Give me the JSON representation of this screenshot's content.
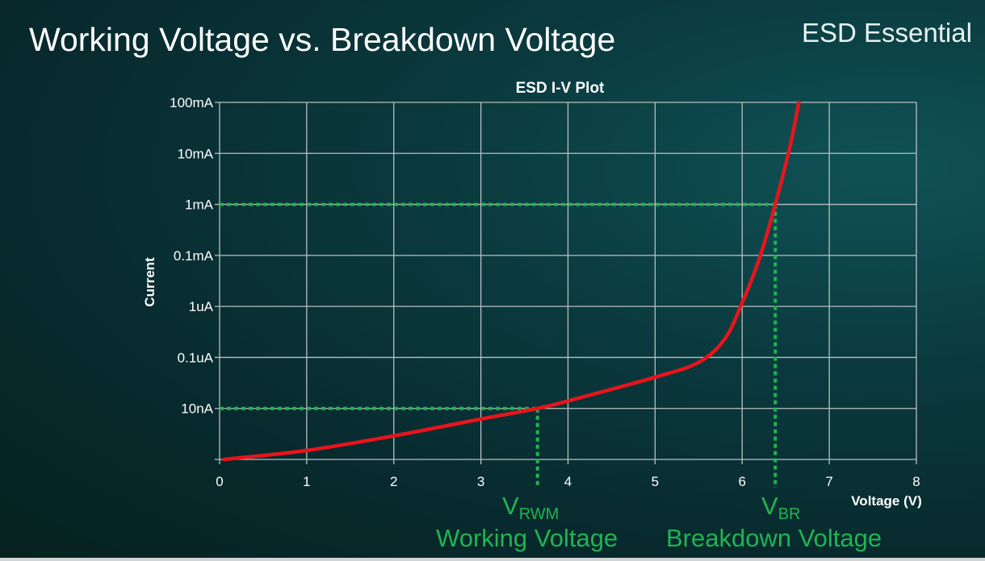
{
  "slide": {
    "title": "Working Voltage vs. Breakdown Voltage",
    "brand": "ESD Essential"
  },
  "annotations": {
    "vrwm_symbol": "V",
    "vrwm_sub": "RWM",
    "vrwm_label": "Working Voltage",
    "vbr_symbol": "V",
    "vbr_sub": "BR",
    "vbr_label": "Breakdown Voltage"
  },
  "chart_data": {
    "type": "line",
    "title": "ESD I-V Plot",
    "xlabel": "Voltage (V)",
    "ylabel": "Current",
    "xlim": [
      0,
      8
    ],
    "x_ticks": [
      0,
      1,
      2,
      3,
      4,
      5,
      6,
      7,
      8
    ],
    "y_scale": "log",
    "y_ticks": [
      {
        "label": "10nA",
        "value": 1e-08
      },
      {
        "label": "0.1uA",
        "value": 1e-07
      },
      {
        "label": "1uA",
        "value": 1e-06
      },
      {
        "label": "0.1mA",
        "value": 0.0001
      },
      {
        "label": "1mA",
        "value": 0.001
      },
      {
        "label": "10mA",
        "value": 0.01
      },
      {
        "label": "100mA",
        "value": 0.1
      }
    ],
    "ylim": [
      1e-09,
      0.1
    ],
    "grid": true,
    "series": [
      {
        "color": "#e8141c",
        "x": [
          0.05,
          1,
          2,
          3,
          3.65,
          4,
          5,
          5.5,
          5.8,
          6,
          6.2,
          6.38,
          6.55,
          6.65
        ],
        "y": [
          1e-09,
          1.5e-09,
          2.9e-09,
          6.2e-09,
          1e-08,
          1.4e-08,
          4.1e-08,
          8e-08,
          2.3e-07,
          1.4e-06,
          8e-05,
          0.001,
          0.014,
          0.1
        ]
      }
    ],
    "reference_lines": [
      {
        "color": "#1fb452",
        "x": 3.65,
        "y": 1e-08
      },
      {
        "color": "#1fb452",
        "x": 6.38,
        "y": 0.001
      }
    ]
  }
}
